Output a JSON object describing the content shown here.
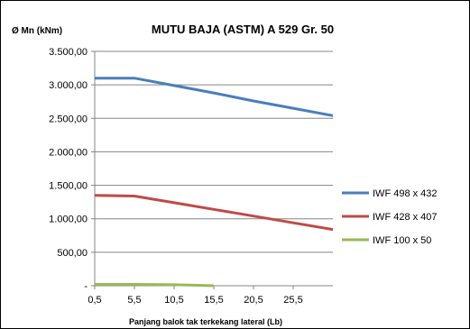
{
  "chart_data": {
    "type": "line",
    "title": "MUTU BAJA (ASTM) A 529  Gr. 50",
    "ylabel": "Ø Mn (kNm)",
    "xlabel": "Panjang balok tak terkekang lateral (Lb)",
    "x_categories": [
      "0,5",
      "5,5",
      "10,5",
      "15,5",
      "20,5",
      "25,5"
    ],
    "y_ticks": [
      "-",
      "500,00",
      "1.000,00",
      "1.500,00",
      "2.000,00",
      "2.500,00",
      "3.000,00",
      "3.500,00"
    ],
    "ylim": [
      0,
      3500
    ],
    "xlim": [
      0.5,
      30.5
    ],
    "grid": "horizontal",
    "legend_position": "right",
    "series": [
      {
        "name": "IWF 498 x 432",
        "color": "#4a7ebb",
        "x": [
          0.5,
          5.5,
          10.5,
          15.5,
          20.5,
          25.5,
          30.5
        ],
        "values": [
          3100,
          3100,
          2990,
          2880,
          2760,
          2650,
          2540
        ]
      },
      {
        "name": "IWF 428 x 407",
        "color": "#be4b48",
        "x": [
          0.5,
          5.5,
          10.5,
          15.5,
          20.5,
          25.5,
          30.5
        ],
        "values": [
          1350,
          1340,
          1240,
          1140,
          1040,
          940,
          840
        ]
      },
      {
        "name": "IWF 100 x 50",
        "color": "#98b954",
        "x": [
          0.5,
          5.5,
          10.5,
          12.5,
          15.5
        ],
        "values": [
          20,
          20,
          15,
          10,
          0
        ]
      }
    ]
  }
}
